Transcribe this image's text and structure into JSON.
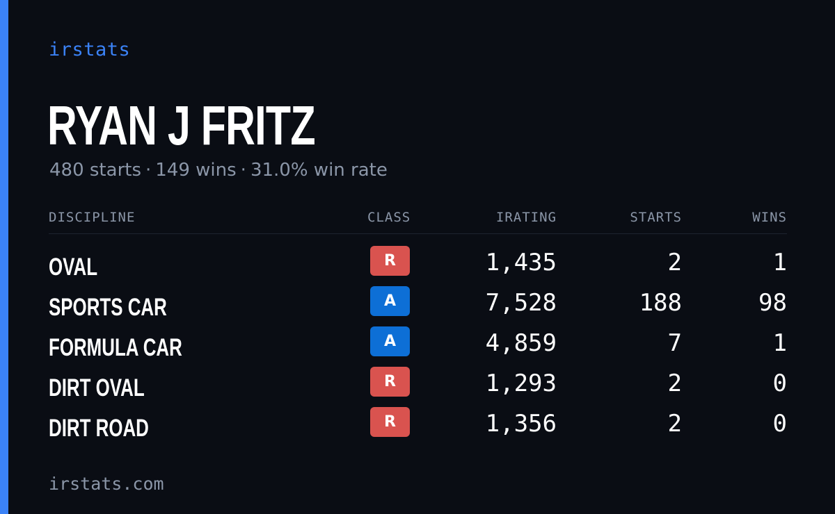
{
  "brand": "irstats",
  "driver": {
    "name": "RYAN J FRITZ",
    "starts_text": "480 starts",
    "wins_text": "149 wins",
    "win_rate_text": "31.0% win rate",
    "separator": "·"
  },
  "table": {
    "headers": {
      "discipline": "DISCIPLINE",
      "class": "CLASS",
      "irating": "IRATING",
      "starts": "STARTS",
      "wins": "WINS"
    },
    "rows": [
      {
        "discipline": "OVAL",
        "class": "R",
        "class_color": "#d9534f",
        "irating": "1,435",
        "starts": "2",
        "wins": "1"
      },
      {
        "discipline": "SPORTS CAR",
        "class": "A",
        "class_color": "#0d6fd6",
        "irating": "7,528",
        "starts": "188",
        "wins": "98"
      },
      {
        "discipline": "FORMULA CAR",
        "class": "A",
        "class_color": "#0d6fd6",
        "irating": "4,859",
        "starts": "7",
        "wins": "1"
      },
      {
        "discipline": "DIRT OVAL",
        "class": "R",
        "class_color": "#d9534f",
        "irating": "1,293",
        "starts": "2",
        "wins": "0"
      },
      {
        "discipline": "DIRT ROAD",
        "class": "R",
        "class_color": "#d9534f",
        "irating": "1,356",
        "starts": "2",
        "wins": "0"
      }
    ]
  },
  "footer": {
    "site": "irstats.com"
  },
  "colors": {
    "accent": "#3b82f6",
    "background": "#0a0d14",
    "muted": "#8b96a8"
  }
}
